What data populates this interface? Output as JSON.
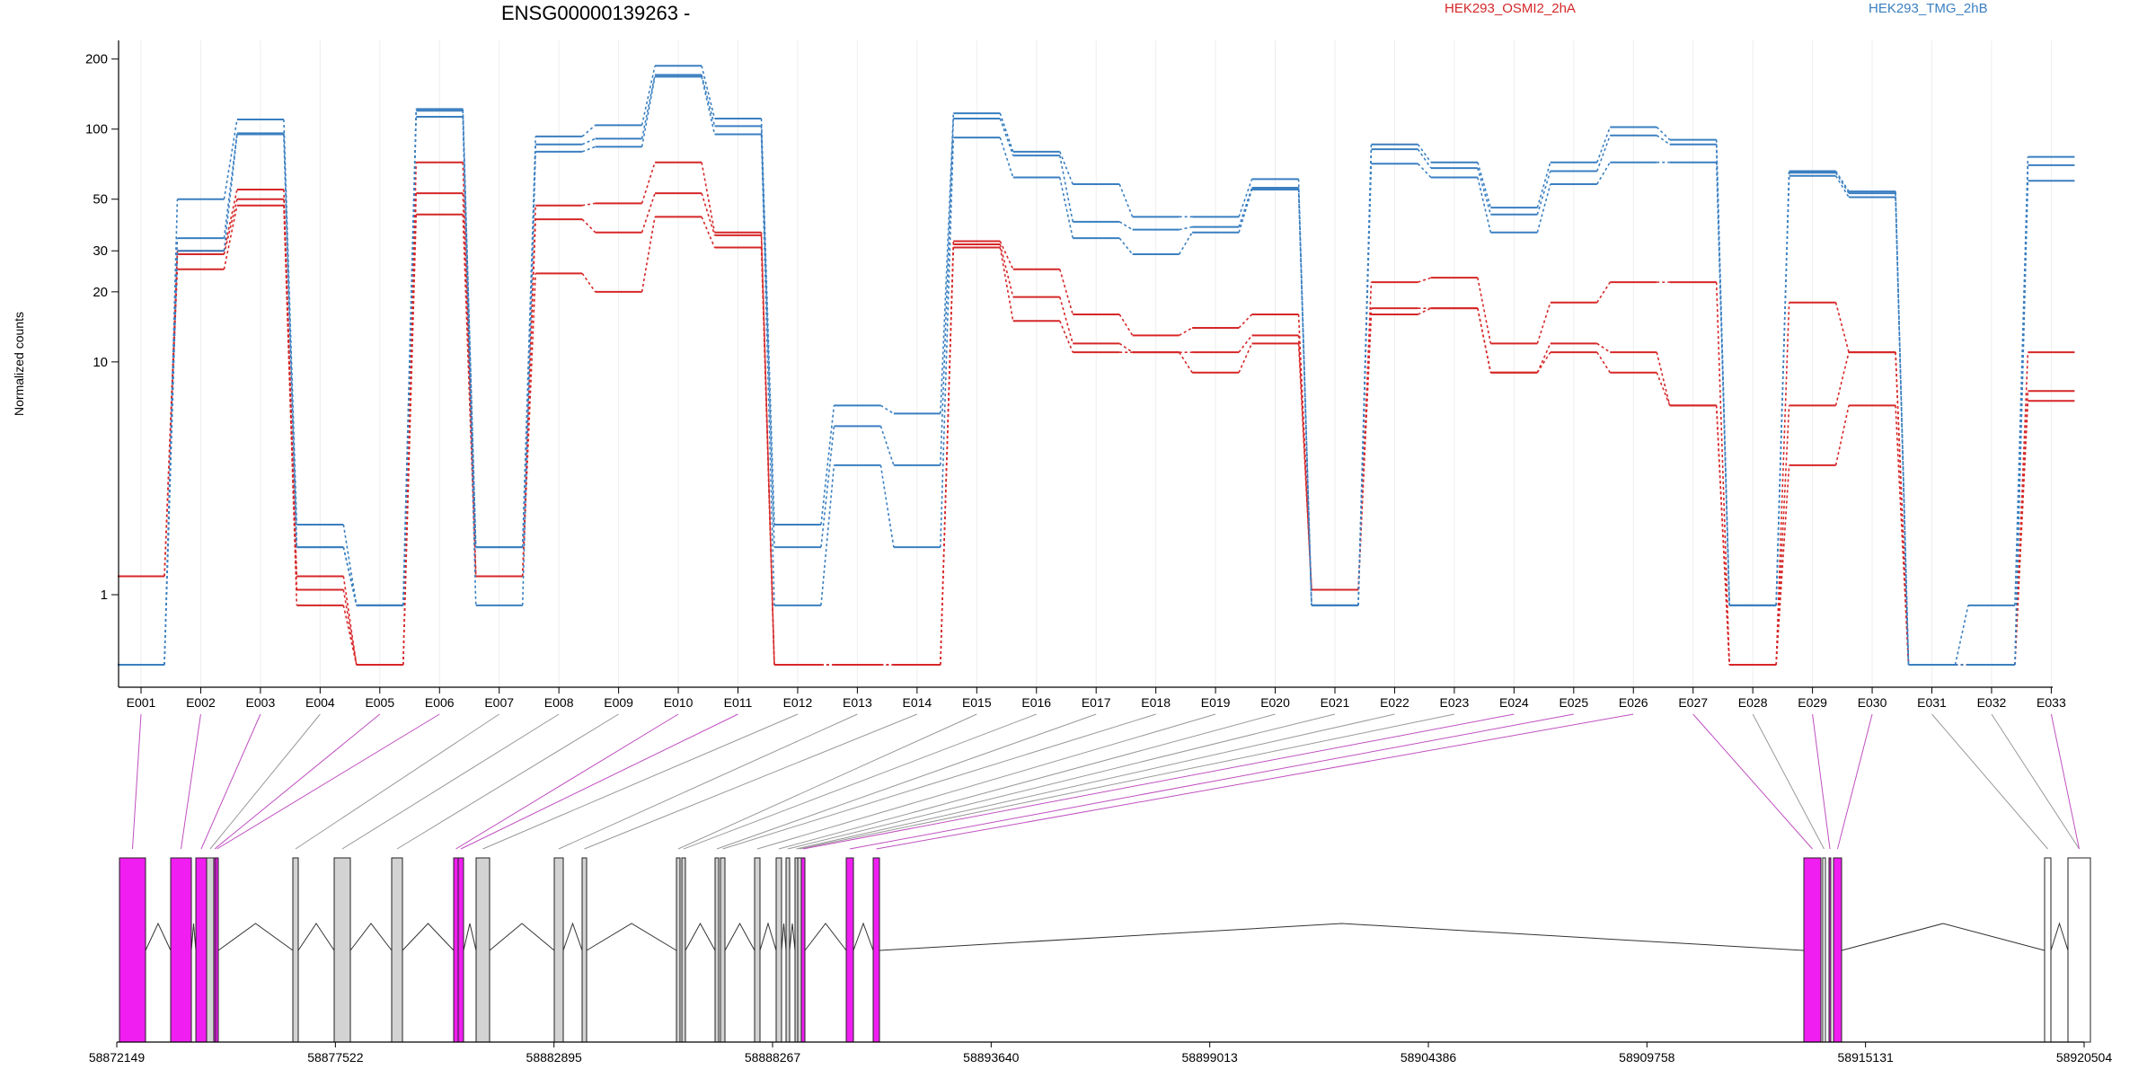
{
  "chart_data": {
    "type": "line",
    "title": "ENSG00000139263 -",
    "ylabel": "Normalized counts",
    "yscale": "log",
    "ylim": [
      0.5,
      230
    ],
    "yticks": [
      1,
      10,
      20,
      30,
      50,
      100,
      200
    ],
    "ytick_labels": [
      "1",
      "10",
      "20",
      "30",
      "50",
      "100",
      "200"
    ],
    "grid": "vertical",
    "legend": [
      {
        "label": "HEK293_OSMI2_2hA",
        "color": "#d62728"
      },
      {
        "label": "HEK293_TMG_2hB",
        "color": "#3a7fc0"
      }
    ],
    "categories": [
      "E001",
      "E002",
      "E003",
      "E004",
      "E005",
      "E006",
      "E007",
      "E008",
      "E009",
      "E010",
      "E011",
      "E012",
      "E013",
      "E014",
      "E015",
      "E016",
      "E017",
      "E018",
      "E019",
      "E020",
      "E021",
      "E022",
      "E023",
      "E024",
      "E025",
      "E026",
      "E027",
      "E028",
      "E029",
      "E030",
      "E031",
      "E032",
      "E033"
    ],
    "series": [
      {
        "color": "#d62728",
        "values": [
          1.2,
          25,
          47,
          0.9,
          0.5,
          43,
          1.2,
          24,
          20,
          42,
          31,
          0.5,
          0.5,
          0.5,
          31,
          15,
          11,
          11,
          9,
          12,
          1.05,
          16,
          17,
          9,
          11,
          9,
          6.5,
          0.5,
          3.6,
          6.5,
          0.5,
          0.5,
          6.8
        ]
      },
      {
        "color": "#d62728",
        "values": [
          1.2,
          29,
          50,
          1.05,
          0.5,
          53,
          1.2,
          41,
          36,
          53,
          35,
          0.5,
          0.5,
          0.5,
          32,
          19,
          12,
          11,
          11,
          13,
          1.05,
          17,
          17,
          9,
          12,
          11,
          6.5,
          0.5,
          6.5,
          11,
          0.5,
          0.5,
          7.5
        ]
      },
      {
        "color": "#d62728",
        "values": [
          1.2,
          30,
          55,
          1.2,
          0.5,
          72,
          1.2,
          47,
          48,
          72,
          36,
          0.5,
          0.5,
          0.5,
          33,
          25,
          16,
          13,
          14,
          16,
          1.05,
          22,
          23,
          12,
          18,
          22,
          22,
          0.5,
          18,
          11,
          0.5,
          0.5,
          11
        ]
      },
      {
        "color": "#3a7fc0",
        "values": [
          0.5,
          30,
          95,
          1.6,
          0.9,
          113,
          0.9,
          80,
          84,
          168,
          95,
          0.9,
          3.6,
          1.6,
          92,
          62,
          34,
          29,
          36,
          55,
          0.9,
          71,
          62,
          36,
          58,
          72,
          72,
          0.9,
          63,
          51,
          0.5,
          0.5,
          60
        ]
      },
      {
        "color": "#3a7fc0",
        "values": [
          0.5,
          34,
          96,
          1.6,
          0.9,
          120,
          1.6,
          86,
          91,
          171,
          103,
          1.6,
          5.3,
          3.6,
          111,
          77,
          40,
          37,
          38,
          56,
          0.9,
          82,
          68,
          43,
          66,
          94,
          86,
          0.9,
          65,
          53,
          0.5,
          0.5,
          70
        ]
      },
      {
        "color": "#3a7fc0",
        "values": [
          0.5,
          50,
          110,
          2.0,
          0.9,
          122,
          1.6,
          93,
          104,
          187,
          111,
          2.0,
          6.5,
          6.0,
          117,
          80,
          58,
          42,
          42,
          61,
          0.9,
          86,
          72,
          46,
          72,
          102,
          90,
          0.9,
          66,
          54,
          0.5,
          0.9,
          76
        ]
      }
    ],
    "gene_model": {
      "coord_labels": [
        "58872149",
        "58877522",
        "58882895",
        "58888267",
        "58893640",
        "58899013",
        "58904386",
        "58909758",
        "58915131",
        "58920504"
      ],
      "exons": [
        {
          "id": "E001",
          "color": "#f01ef0"
        },
        {
          "id": "E002",
          "color": "#f01ef0"
        },
        {
          "id": "E003",
          "color": "#f01ef0"
        },
        {
          "id": "E004",
          "color": "#d3d3d3"
        },
        {
          "id": "E005",
          "color": "#f01ef0"
        },
        {
          "id": "E006",
          "color": "#f01ef0"
        },
        {
          "id": "E007",
          "color": "#d3d3d3"
        },
        {
          "id": "E008",
          "color": "#d3d3d3"
        },
        {
          "id": "E009",
          "color": "#d3d3d3"
        },
        {
          "id": "E010",
          "color": "#f01ef0"
        },
        {
          "id": "E011",
          "color": "#f01ef0"
        },
        {
          "id": "E012",
          "color": "#d3d3d3"
        },
        {
          "id": "E013",
          "color": "#d3d3d3"
        },
        {
          "id": "E014",
          "color": "#d3d3d3"
        },
        {
          "id": "E015",
          "color": "#d3d3d3"
        },
        {
          "id": "E016",
          "color": "#d3d3d3"
        },
        {
          "id": "E017",
          "color": "#d3d3d3"
        },
        {
          "id": "E018",
          "color": "#d3d3d3"
        },
        {
          "id": "E019",
          "color": "#d3d3d3"
        },
        {
          "id": "E020",
          "color": "#d3d3d3"
        },
        {
          "id": "E021",
          "color": "#d3d3d3"
        },
        {
          "id": "E022",
          "color": "#d3d3d3"
        },
        {
          "id": "E023",
          "color": "#d3d3d3"
        },
        {
          "id": "E024",
          "color": "#f01ef0"
        },
        {
          "id": "E025",
          "color": "#f01ef0"
        },
        {
          "id": "E026",
          "color": "#f01ef0"
        },
        {
          "id": "E027",
          "color": "#f01ef0"
        },
        {
          "id": "E028",
          "color": "#ffffff"
        },
        {
          "id": "E029",
          "color": "#f01ef0"
        },
        {
          "id": "E030",
          "color": "#f01ef0"
        },
        {
          "id": "E031",
          "color": "#ffffff"
        },
        {
          "id": "E032",
          "color": "#ffffff"
        },
        {
          "id": "E033",
          "color": "#f01ef0"
        }
      ]
    }
  }
}
